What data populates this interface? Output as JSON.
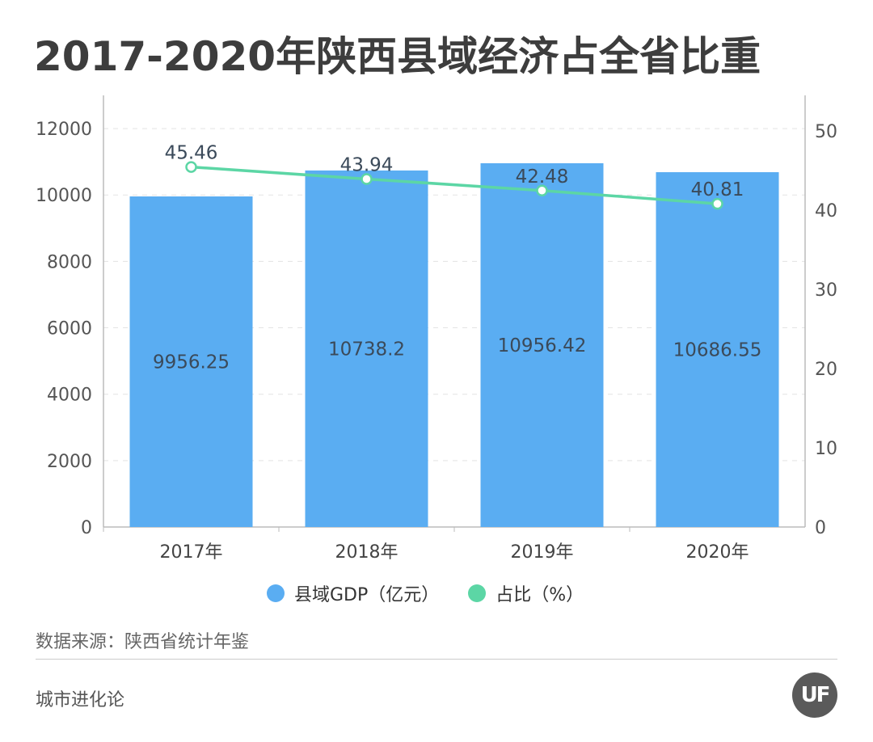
{
  "title": "2017-2020年陕西县域经济占全省比重",
  "chart_data": {
    "type": "bar",
    "categories": [
      "2017年",
      "2018年",
      "2019年",
      "2020年"
    ],
    "series": [
      {
        "name": "县域GDP（亿元）",
        "type": "bar",
        "axis": "left",
        "color": "#5aadf2",
        "values": [
          9956.25,
          10738.2,
          10956.42,
          10686.55
        ],
        "labels": [
          "9956.25",
          "10738.2",
          "10956.42",
          "10686.55"
        ]
      },
      {
        "name": "占比（%）",
        "type": "line",
        "axis": "right",
        "color": "#5cd6a5",
        "values": [
          45.46,
          43.94,
          42.48,
          40.81
        ],
        "labels": [
          "45.46",
          "43.94",
          "42.48",
          "40.81"
        ]
      }
    ],
    "left_axis": {
      "min": 0,
      "max": 13000,
      "ticks": [
        0,
        2000,
        4000,
        6000,
        8000,
        10000,
        12000
      ]
    },
    "right_axis": {
      "min": 0,
      "max": 54.5,
      "ticks": [
        0,
        10,
        20,
        30,
        40,
        50
      ]
    },
    "grid": true,
    "legend_position": "bottom"
  },
  "source": "数据来源：陕西省统计年鉴",
  "brand": "城市进化论",
  "logo_text": "UF"
}
